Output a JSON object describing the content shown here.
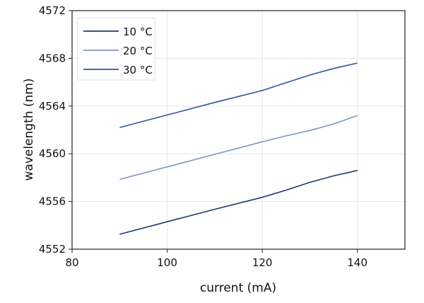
{
  "chart_data": {
    "type": "line",
    "title": "",
    "xlabel": "current (mA)",
    "ylabel": "wavelength (nm)",
    "xlim": [
      80,
      150
    ],
    "ylim": [
      4552,
      4572
    ],
    "xticks": [
      80,
      100,
      120,
      140
    ],
    "yticks": [
      4552,
      4556,
      4560,
      4564,
      4568,
      4572
    ],
    "grid": true,
    "legend_position": "top-left",
    "series": [
      {
        "name": "10 °C",
        "color": "#1f3a6e",
        "x": [
          90,
          100,
          110,
          120,
          125,
          130,
          135,
          140
        ],
        "y": [
          4553.25,
          4554.3,
          4555.35,
          4556.35,
          4556.95,
          4557.6,
          4558.15,
          4558.6
        ]
      },
      {
        "name": "20 °C",
        "color": "#7f97bf",
        "x": [
          90,
          100,
          110,
          120,
          125,
          130,
          135,
          140
        ],
        "y": [
          4557.85,
          4558.9,
          4559.95,
          4561.0,
          4561.5,
          4561.95,
          4562.5,
          4563.2
        ]
      },
      {
        "name": "30 °C",
        "color": "#2f5597",
        "x": [
          90,
          100,
          110,
          120,
          123,
          130,
          135,
          140
        ],
        "y": [
          4562.2,
          4563.25,
          4564.3,
          4565.3,
          4565.7,
          4566.6,
          4567.15,
          4567.6
        ]
      }
    ]
  }
}
